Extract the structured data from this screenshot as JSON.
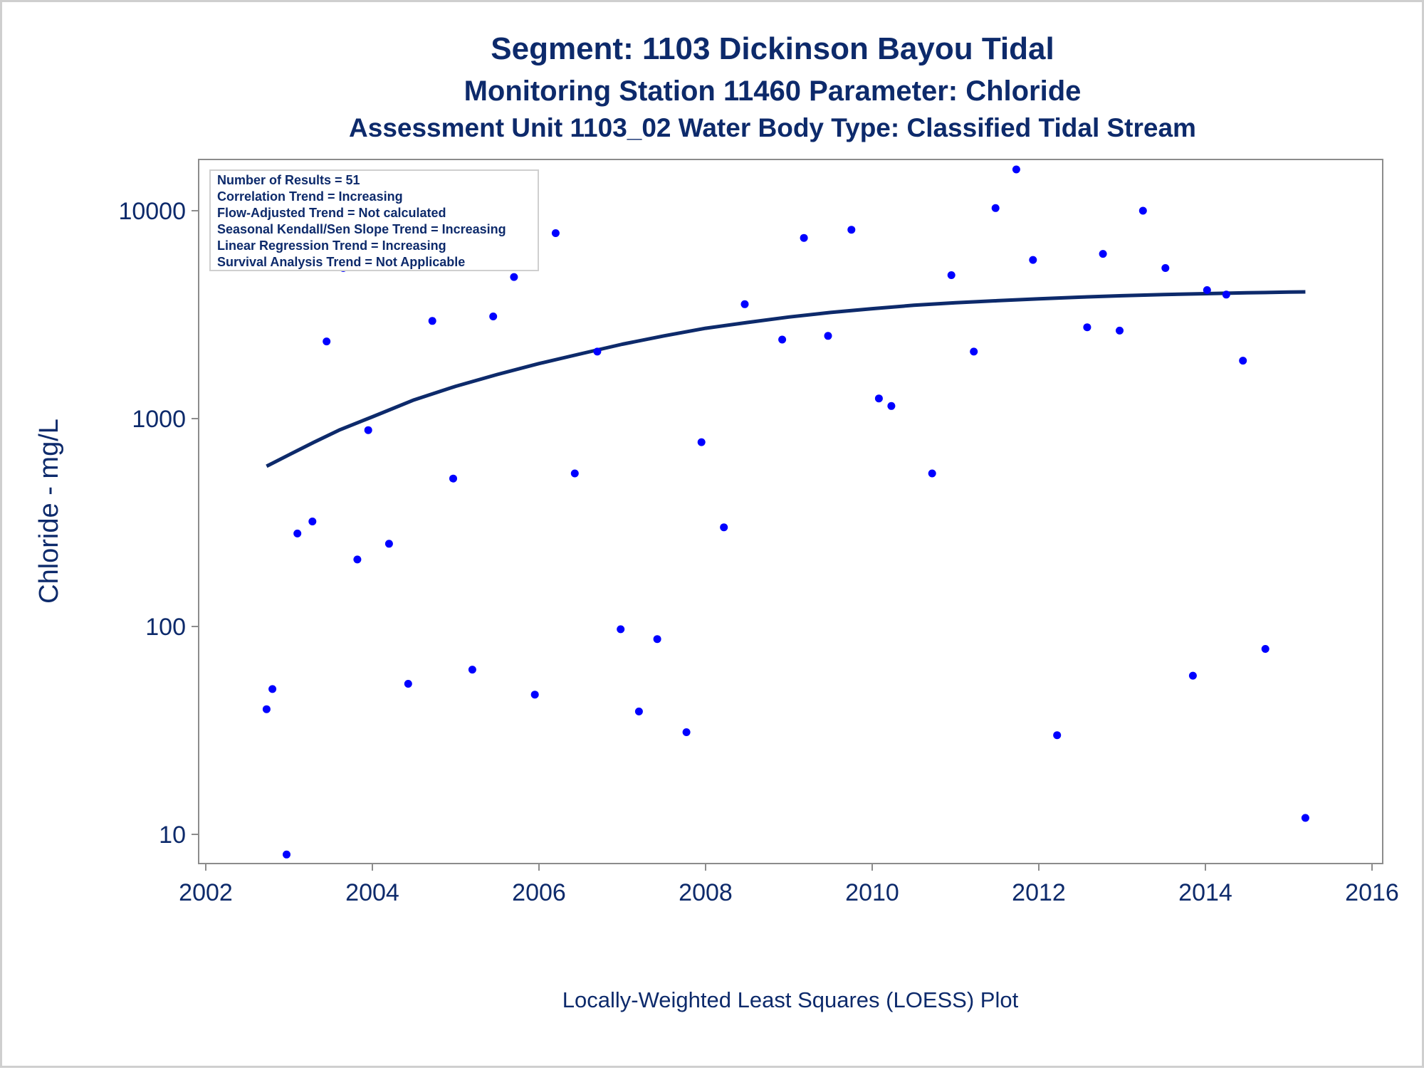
{
  "chart_data": {
    "type": "scatter",
    "title": "Segment: 1103  Dickinson Bayou Tidal",
    "subtitle_1": "Monitoring Station 11460 Parameter: Chloride",
    "subtitle_2": "Assessment Unit 1103_02   Water Body Type: Classified Tidal Stream",
    "ylabel": "Chloride - mg/L",
    "xlabel": "",
    "footnote": "Locally-Weighted Least Squares (LOESS) Plot",
    "yscale": "log",
    "ylim": [
      6.5,
      17000
    ],
    "xlim": [
      2001.85,
      2016.25
    ],
    "x_ticks": [
      "2002",
      "2004",
      "2006",
      "2008",
      "2010",
      "2012",
      "2014",
      "2016"
    ],
    "y_ticks": [
      "10",
      "100",
      "1000",
      "10000"
    ],
    "grid": false,
    "legend_position": "top-left",
    "stats_box": [
      "Number of Results = 51",
      "Correlation Trend = Increasing",
      "Flow-Adjusted Trend = Not calculated",
      "Seasonal Kendall/Sen Slope Trend = Increasing",
      "Linear Regression Trend = Increasing",
      "Survival Analysis Trend = Not Applicable"
    ],
    "series": [
      {
        "kind": "points",
        "color": "#0000ff",
        "points": [
          [
            2002.73,
            40
          ],
          [
            2002.8,
            50
          ],
          [
            2002.97,
            8
          ],
          [
            2003.1,
            280
          ],
          [
            2003.28,
            320
          ],
          [
            2003.45,
            2350
          ],
          [
            2003.65,
            5300
          ],
          [
            2003.82,
            210
          ],
          [
            2003.95,
            880
          ],
          [
            2004.2,
            250
          ],
          [
            2004.43,
            53
          ],
          [
            2004.72,
            2950
          ],
          [
            2004.97,
            515
          ],
          [
            2005.2,
            62
          ],
          [
            2005.45,
            3100
          ],
          [
            2005.7,
            4800
          ],
          [
            2005.95,
            47
          ],
          [
            2006.2,
            7800
          ],
          [
            2006.43,
            545
          ],
          [
            2006.7,
            2100
          ],
          [
            2006.98,
            97
          ],
          [
            2007.2,
            39
          ],
          [
            2007.42,
            87
          ],
          [
            2007.77,
            31
          ],
          [
            2007.95,
            770
          ],
          [
            2008.22,
            300
          ],
          [
            2008.47,
            3550
          ],
          [
            2008.92,
            2400
          ],
          [
            2009.18,
            7400
          ],
          [
            2009.47,
            2500
          ],
          [
            2009.75,
            8100
          ],
          [
            2010.08,
            1250
          ],
          [
            2010.23,
            1150
          ],
          [
            2010.72,
            545
          ],
          [
            2010.95,
            4900
          ],
          [
            2011.22,
            2100
          ],
          [
            2011.48,
            10300
          ],
          [
            2011.73,
            15800
          ],
          [
            2011.93,
            5800
          ],
          [
            2012.22,
            30
          ],
          [
            2012.58,
            2750
          ],
          [
            2012.77,
            6200
          ],
          [
            2012.97,
            2650
          ],
          [
            2013.25,
            10000
          ],
          [
            2013.52,
            5300
          ],
          [
            2013.85,
            58
          ],
          [
            2014.02,
            4150
          ],
          [
            2014.25,
            3950
          ],
          [
            2014.45,
            1900
          ],
          [
            2014.72,
            78
          ],
          [
            2015.2,
            12
          ]
        ]
      },
      {
        "kind": "line",
        "color": "#0d2a6b",
        "points": [
          [
            2002.73,
            590
          ],
          [
            2003.0,
            670
          ],
          [
            2003.3,
            770
          ],
          [
            2003.6,
            880
          ],
          [
            2004.0,
            1020
          ],
          [
            2004.5,
            1230
          ],
          [
            2005.0,
            1430
          ],
          [
            2005.5,
            1630
          ],
          [
            2006.0,
            1840
          ],
          [
            2006.5,
            2050
          ],
          [
            2007.0,
            2280
          ],
          [
            2007.5,
            2500
          ],
          [
            2008.0,
            2720
          ],
          [
            2008.5,
            2900
          ],
          [
            2009.0,
            3080
          ],
          [
            2009.5,
            3240
          ],
          [
            2010.0,
            3380
          ],
          [
            2010.5,
            3510
          ],
          [
            2011.0,
            3610
          ],
          [
            2011.5,
            3690
          ],
          [
            2012.0,
            3770
          ],
          [
            2012.5,
            3840
          ],
          [
            2013.0,
            3900
          ],
          [
            2013.5,
            3950
          ],
          [
            2014.0,
            3990
          ],
          [
            2014.5,
            4030
          ],
          [
            2015.0,
            4060
          ],
          [
            2015.2,
            4070
          ]
        ]
      }
    ]
  }
}
